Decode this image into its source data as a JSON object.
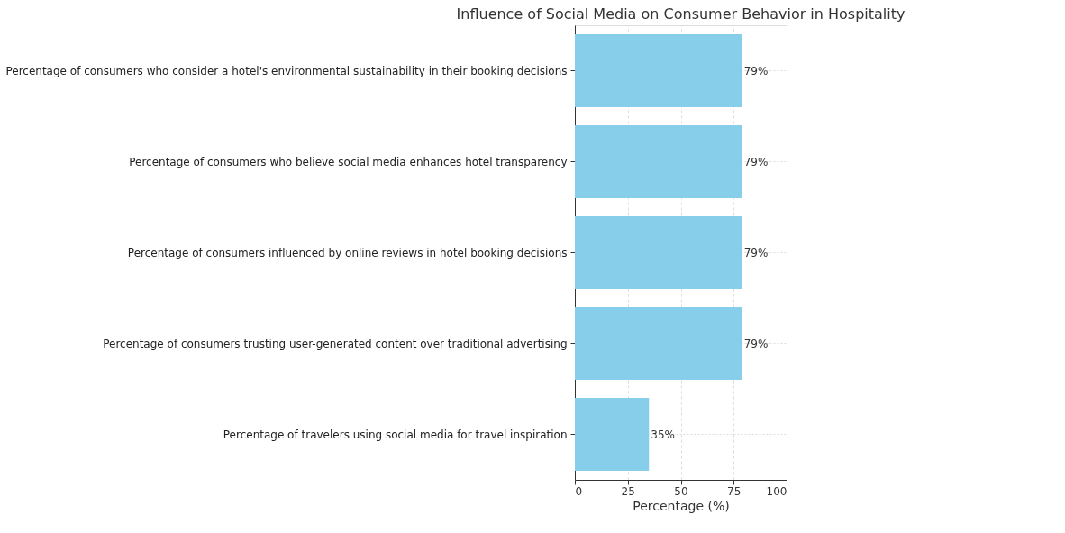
{
  "chart_data": {
    "type": "bar",
    "orientation": "horizontal",
    "title": "Influence of Social Media on Consumer Behavior in Hospitality",
    "xlabel": "Percentage (%)",
    "categories": [
      "Percentage of consumers who consider a hotel's environmental sustainability in their booking decisions",
      "Percentage of consumers who believe social media enhances hotel transparency",
      "Percentage of consumers influenced by online reviews in hotel booking decisions",
      "Percentage of consumers trusting user-generated content over traditional advertising",
      "Percentage of travelers using social media for travel inspiration"
    ],
    "values": [
      79,
      79,
      79,
      79,
      35
    ],
    "value_labels": [
      "79%",
      "79%",
      "79%",
      "79%",
      "35%"
    ],
    "color": "#87ceeb",
    "xlim": [
      0,
      100
    ],
    "xticks": [
      0,
      25,
      50,
      75,
      100
    ],
    "grid": true
  }
}
